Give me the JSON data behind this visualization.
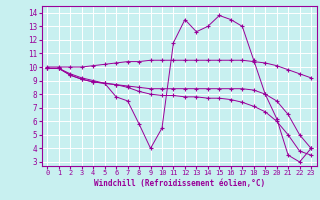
{
  "xlabel": "Windchill (Refroidissement éolien,°C)",
  "xlim_min": -0.5,
  "xlim_max": 23.5,
  "ylim_min": 2.7,
  "ylim_max": 14.5,
  "xticks": [
    0,
    1,
    2,
    3,
    4,
    5,
    6,
    7,
    8,
    9,
    10,
    11,
    12,
    13,
    14,
    15,
    16,
    17,
    18,
    19,
    20,
    21,
    22,
    23
  ],
  "yticks": [
    3,
    4,
    5,
    6,
    7,
    8,
    9,
    10,
    11,
    12,
    13,
    14
  ],
  "bg_color": "#c8f0f0",
  "line_color": "#990099",
  "grid_color": "#ffffff",
  "lines": [
    [
      9.9,
      9.9,
      9.5,
      9.2,
      9.0,
      8.8,
      7.8,
      7.5,
      5.8,
      4.0,
      5.5,
      11.8,
      13.5,
      12.6,
      13.0,
      13.8,
      13.5,
      13.0,
      10.5,
      8.0,
      6.2,
      3.5,
      3.0,
      4.0
    ],
    [
      9.9,
      9.9,
      9.4,
      9.1,
      8.9,
      8.8,
      8.7,
      8.6,
      8.5,
      8.4,
      8.4,
      8.4,
      8.4,
      8.4,
      8.4,
      8.4,
      8.4,
      8.4,
      8.3,
      8.0,
      7.5,
      6.5,
      5.0,
      4.0
    ],
    [
      9.9,
      9.9,
      9.4,
      9.1,
      8.9,
      8.8,
      8.7,
      8.5,
      8.2,
      8.0,
      7.9,
      7.9,
      7.8,
      7.8,
      7.7,
      7.7,
      7.6,
      7.4,
      7.1,
      6.7,
      6.0,
      5.0,
      3.8,
      3.5
    ],
    [
      10.0,
      10.0,
      10.0,
      10.0,
      10.1,
      10.2,
      10.3,
      10.4,
      10.4,
      10.5,
      10.5,
      10.5,
      10.5,
      10.5,
      10.5,
      10.5,
      10.5,
      10.5,
      10.4,
      10.3,
      10.1,
      9.8,
      9.5,
      9.2
    ]
  ]
}
